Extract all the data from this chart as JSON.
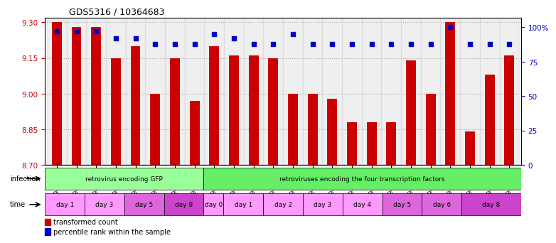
{
  "title": "GDS5316 / 10364683",
  "samples": [
    "GSM943810",
    "GSM943811",
    "GSM943812",
    "GSM943813",
    "GSM943814",
    "GSM943815",
    "GSM943816",
    "GSM943817",
    "GSM943794",
    "GSM943795",
    "GSM943796",
    "GSM943797",
    "GSM943798",
    "GSM943799",
    "GSM943800",
    "GSM943801",
    "GSM943802",
    "GSM943803",
    "GSM943804",
    "GSM943805",
    "GSM943806",
    "GSM943807",
    "GSM943808",
    "GSM943809"
  ],
  "bar_values": [
    9.3,
    9.28,
    9.28,
    9.15,
    9.2,
    9.0,
    9.15,
    8.97,
    9.2,
    9.16,
    9.16,
    9.15,
    9.0,
    9.0,
    8.98,
    8.88,
    8.88,
    8.88,
    9.14,
    9.0,
    9.3,
    8.84,
    9.08,
    9.16
  ],
  "percentile_values": [
    97,
    97,
    97,
    92,
    92,
    88,
    88,
    88,
    95,
    92,
    88,
    88,
    95,
    88,
    88,
    88,
    88,
    88,
    88,
    88,
    100,
    88,
    88,
    88
  ],
  "ylim_left": [
    8.7,
    9.32
  ],
  "ylim_right": [
    0,
    107
  ],
  "yticks_left": [
    8.7,
    8.85,
    9.0,
    9.15,
    9.3
  ],
  "yticks_right": [
    0,
    25,
    50,
    75,
    100
  ],
  "ytick_labels_right": [
    "0",
    "25",
    "50",
    "75",
    "100%"
  ],
  "bar_color": "#cc0000",
  "dot_color": "#0000cc",
  "bar_bottom": 8.7,
  "infection_groups": [
    {
      "label": "retrovirus encoding GFP",
      "start": 0,
      "end": 8,
      "color": "#99ff99"
    },
    {
      "label": "retroviruses encoding the four transcription factors",
      "start": 8,
      "end": 24,
      "color": "#66ee66"
    }
  ],
  "time_groups": [
    {
      "label": "day 1",
      "start": 0,
      "end": 2,
      "color": "#ff99ff"
    },
    {
      "label": "day 3",
      "start": 2,
      "end": 4,
      "color": "#ff99ff"
    },
    {
      "label": "day 5",
      "start": 4,
      "end": 6,
      "color": "#dd66dd"
    },
    {
      "label": "day 8",
      "start": 6,
      "end": 8,
      "color": "#cc44cc"
    },
    {
      "label": "day 0",
      "start": 8,
      "end": 9,
      "color": "#ff99ff"
    },
    {
      "label": "day 1",
      "start": 9,
      "end": 11,
      "color": "#ff99ff"
    },
    {
      "label": "day 2",
      "start": 11,
      "end": 13,
      "color": "#ff99ff"
    },
    {
      "label": "day 3",
      "start": 13,
      "end": 15,
      "color": "#ff99ff"
    },
    {
      "label": "day 4",
      "start": 15,
      "end": 17,
      "color": "#ff99ff"
    },
    {
      "label": "day 5",
      "start": 17,
      "end": 19,
      "color": "#dd66dd"
    },
    {
      "label": "day 6",
      "start": 19,
      "end": 21,
      "color": "#dd66dd"
    },
    {
      "label": "day 8",
      "start": 21,
      "end": 24,
      "color": "#cc44cc"
    }
  ],
  "legend_items": [
    {
      "label": "transformed count",
      "color": "#cc0000"
    },
    {
      "label": "percentile rank within the sample",
      "color": "#0000cc"
    }
  ],
  "bg_color": "#ffffff",
  "tick_label_color_left": "#cc0000",
  "tick_label_color_right": "#0000cc",
  "grid_color": "#999999",
  "sample_bg_color": "#cccccc"
}
